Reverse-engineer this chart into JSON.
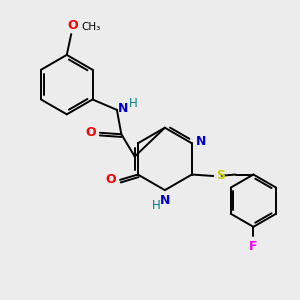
{
  "bg_color": "#ececec",
  "bond_color": "#000000",
  "N_color": "#0000cc",
  "O_color": "#ff0000",
  "S_color": "#cccc00",
  "F_color": "#ff00ff",
  "H_color": "#008080",
  "lw": 1.4,
  "figsize": [
    3.0,
    3.0
  ],
  "dpi": 100,
  "xlim": [
    0,
    10
  ],
  "ylim": [
    0,
    10
  ]
}
